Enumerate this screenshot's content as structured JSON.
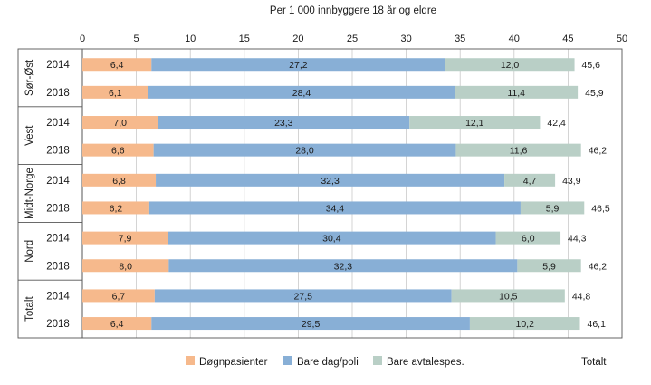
{
  "chart_data": {
    "type": "bar",
    "orientation": "horizontal",
    "stacked": true,
    "title": "",
    "xlabel": "Per 1 000 innbyggere 18 år og eldre",
    "xlim": [
      0,
      50
    ],
    "xticks": [
      0,
      5,
      10,
      15,
      20,
      25,
      30,
      35,
      40,
      45,
      50
    ],
    "grid": true,
    "legend_position": "bottom",
    "total_label": "Totalt",
    "groups": [
      {
        "name": "Sør-Øst",
        "rows": [
          {
            "label": "2014",
            "values": [
              6.4,
              27.2,
              12.0
            ],
            "value_labels": [
              "6,4",
              "27,2",
              "12,0"
            ],
            "total": "45,6"
          },
          {
            "label": "2018",
            "values": [
              6.1,
              28.4,
              11.4
            ],
            "value_labels": [
              "6,1",
              "28,4",
              "11,4"
            ],
            "total": "45,9"
          }
        ]
      },
      {
        "name": "Vest",
        "rows": [
          {
            "label": "2014",
            "values": [
              7.0,
              23.3,
              12.1
            ],
            "value_labels": [
              "7,0",
              "23,3",
              "12,1"
            ],
            "total": "42,4"
          },
          {
            "label": "2018",
            "values": [
              6.6,
              28.0,
              11.6
            ],
            "value_labels": [
              "6,6",
              "28,0",
              "11,6"
            ],
            "total": "46,2"
          }
        ]
      },
      {
        "name": "Midt-Norge",
        "rows": [
          {
            "label": "2014",
            "values": [
              6.8,
              32.3,
              4.7
            ],
            "value_labels": [
              "6,8",
              "32,3",
              "4,7"
            ],
            "total": "43,9"
          },
          {
            "label": "2018",
            "values": [
              6.2,
              34.4,
              5.9
            ],
            "value_labels": [
              "6,2",
              "34,4",
              "5,9"
            ],
            "total": "46,5"
          }
        ]
      },
      {
        "name": "Nord",
        "rows": [
          {
            "label": "2014",
            "values": [
              7.9,
              30.4,
              6.0
            ],
            "value_labels": [
              "7,9",
              "30,4",
              "6,0"
            ],
            "total": "44,3"
          },
          {
            "label": "2018",
            "values": [
              8.0,
              32.3,
              5.9
            ],
            "value_labels": [
              "8,0",
              "32,3",
              "5,9"
            ],
            "total": "46,2"
          }
        ]
      },
      {
        "name": "Totalt",
        "rows": [
          {
            "label": "2014",
            "values": [
              6.7,
              27.5,
              10.5
            ],
            "value_labels": [
              "6,7",
              "27,5",
              "10,5"
            ],
            "total": "44,8"
          },
          {
            "label": "2018",
            "values": [
              6.4,
              29.5,
              10.2
            ],
            "value_labels": [
              "6,4",
              "29,5",
              "10,2"
            ],
            "total": "46,1"
          }
        ]
      }
    ],
    "series": [
      {
        "name": "Døgnpasienter",
        "color": "#f6b98c"
      },
      {
        "name": "Bare dag/poli",
        "color": "#88afd6"
      },
      {
        "name": "Bare avtalespes.",
        "color": "#b9cfc6"
      }
    ]
  }
}
